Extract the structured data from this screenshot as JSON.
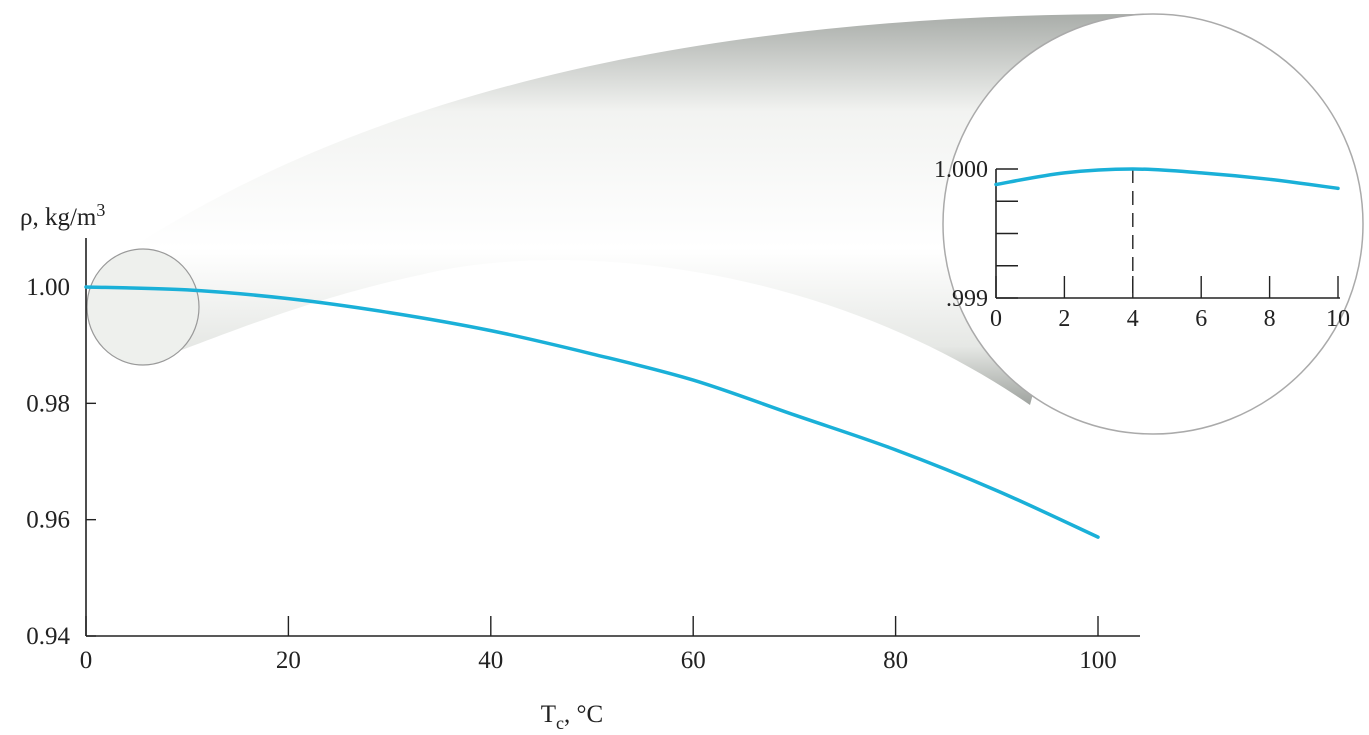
{
  "chart_data": [
    {
      "type": "line",
      "ylabel": [
        "ρ, kg/m",
        "3"
      ],
      "xlabel": [
        "T",
        "c",
        ", °C"
      ],
      "x": [
        0,
        10,
        20,
        30,
        40,
        50,
        60,
        70,
        80,
        90,
        100
      ],
      "values": [
        1.0,
        0.9995,
        0.998,
        0.9956,
        0.9925,
        0.9885,
        0.984,
        0.978,
        0.972,
        0.965,
        0.957
      ],
      "color": "#1ab0d8",
      "xlim": [
        0,
        100
      ],
      "xticks": [
        0,
        20,
        40,
        60,
        80,
        100
      ],
      "ylim": [
        0.94,
        1.0
      ],
      "yticks": [
        0.94,
        0.96,
        0.98,
        {
          "value": 1.0,
          "label": "1.00"
        }
      ]
    },
    {
      "type": "line",
      "x": [
        0,
        2,
        4,
        6,
        8,
        10
      ],
      "values": [
        0.99988,
        0.99997,
        1.0,
        0.99997,
        0.99992,
        0.99985
      ],
      "color": "#1ab0d8",
      "xlim": [
        0,
        10
      ],
      "xticks": [
        0,
        2,
        4,
        6,
        8,
        10
      ],
      "ylim": [
        0.999,
        1.0
      ],
      "yticks": [
        {
          "value": 0.999,
          "label": ".999"
        },
        {
          "value": 1.0,
          "label": "1.000"
        }
      ],
      "minor_yticks": [
        0.99925,
        0.9995,
        0.99975
      ],
      "vline": 4
    }
  ]
}
